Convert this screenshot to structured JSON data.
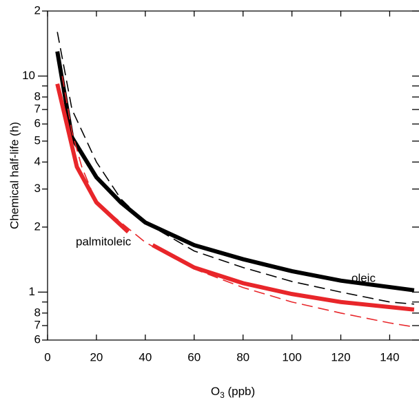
{
  "chart_data": {
    "type": "line",
    "x_label": {
      "main": "O",
      "sub": "3",
      "rest": " (ppb)"
    },
    "y_label": "Chemical half-life (h)",
    "log_y": true,
    "xlim": [
      0,
      152
    ],
    "xticks": [
      0,
      20,
      40,
      60,
      80,
      100,
      120,
      140
    ],
    "ylim": [
      0.6,
      20
    ],
    "yticks": [
      {
        "value": 0.6,
        "label": "6"
      },
      {
        "value": 0.7,
        "label": "7"
      },
      {
        "value": 0.8,
        "label": "8"
      },
      1,
      2,
      3,
      4,
      5,
      6,
      7,
      8,
      10,
      {
        "value": 20,
        "label": "2"
      }
    ],
    "minor_yticks": [
      0.9,
      9
    ],
    "series": [
      {
        "name": "oleic",
        "color": "#000000",
        "dashed": false,
        "x": [
          4,
          10,
          20,
          30,
          40,
          60,
          80,
          100,
          120,
          150
        ],
        "values": [
          13,
          5.2,
          3.4,
          2.6,
          2.1,
          1.65,
          1.42,
          1.25,
          1.13,
          1.02
        ]
      },
      {
        "color": "#000000",
        "dashed": true,
        "x": [
          4,
          10,
          20,
          30,
          40,
          60,
          80,
          100,
          120,
          140,
          150
        ],
        "values": [
          16,
          7,
          4,
          2.7,
          2.1,
          1.55,
          1.3,
          1.12,
          1.0,
          0.9,
          0.88
        ]
      },
      {
        "name": "palmitoleic",
        "color": "#e8262a",
        "dashed": false,
        "x": [
          4,
          12,
          20,
          33,
          38,
          43,
          60,
          80,
          100,
          120,
          150
        ],
        "values": [
          9.2,
          3.8,
          2.6,
          1.9,
          null,
          1.65,
          1.3,
          1.1,
          0.98,
          0.9,
          0.83
        ]
      },
      {
        "color": "#e8262a",
        "dashed": true,
        "x": [
          6,
          10,
          14,
          20,
          40,
          60,
          80,
          100,
          120,
          140,
          150
        ],
        "values": [
          10,
          5.5,
          3.8,
          2.6,
          1.7,
          1.28,
          1.05,
          0.9,
          0.8,
          0.72,
          0.69
        ]
      }
    ]
  }
}
